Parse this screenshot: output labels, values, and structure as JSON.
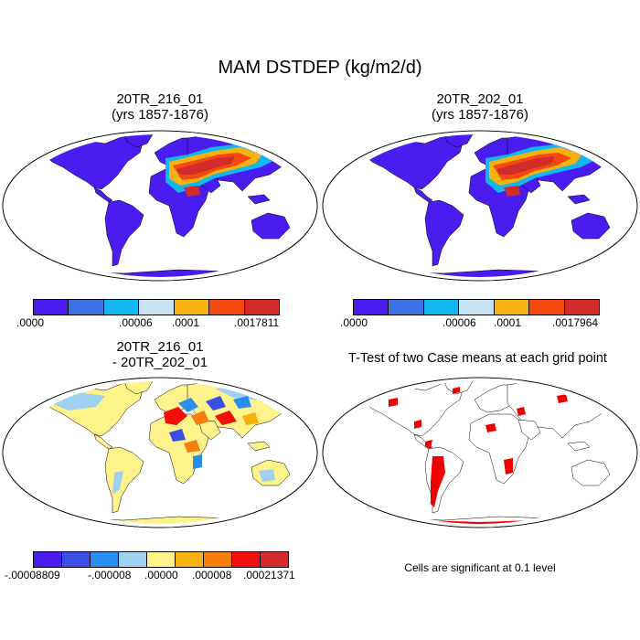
{
  "title": "MAM DSTDEP (kg/m2/d)",
  "panels": {
    "p1": {
      "line1": "20TR_216_01",
      "line2": "(yrs 1857-1876)"
    },
    "p2": {
      "line1": "20TR_202_01",
      "line2": "(yrs 1857-1876)"
    },
    "p3": {
      "line1": "20TR_216_01",
      "line2": "- 20TR_202_01"
    },
    "p4": {
      "line1": "T-Test of two Case means at each grid point",
      "note": "Cells are significant at 0.1 level"
    }
  },
  "colorbars": {
    "cb1": {
      "colors": [
        "#4a1cf0",
        "#3b73e6",
        "#12b7f0",
        "#c8e4f4",
        "#f6b20e",
        "#f44a10",
        "#d22b2b"
      ],
      "labels": [
        ".0000",
        ".00006",
        ".0001",
        ".0017811"
      ]
    },
    "cb2": {
      "colors": [
        "#4a1cf0",
        "#3b73e6",
        "#12b7f0",
        "#c8e4f4",
        "#f6b20e",
        "#f44a10",
        "#d22b2b"
      ],
      "labels": [
        ".0000",
        ".00006",
        ".0001",
        ".0017964"
      ]
    },
    "cb3": {
      "colors": [
        "#4a1cf0",
        "#3a4de6",
        "#2a8ef0",
        "#9fd0f0",
        "#fef38a",
        "#f6b20e",
        "#f47d0e",
        "#f30e0e",
        "#d22b2b"
      ],
      "labels": [
        "-.00008809",
        "-.000008",
        ".00000",
        ".000008",
        ".00021371"
      ]
    }
  },
  "colors": {
    "ocean": "#ffffff",
    "land_low": "#4a1cf0",
    "dust_high": "#d22b2b",
    "diff_neutral": "#fef38a",
    "ttest_sig": "#ee0000"
  }
}
